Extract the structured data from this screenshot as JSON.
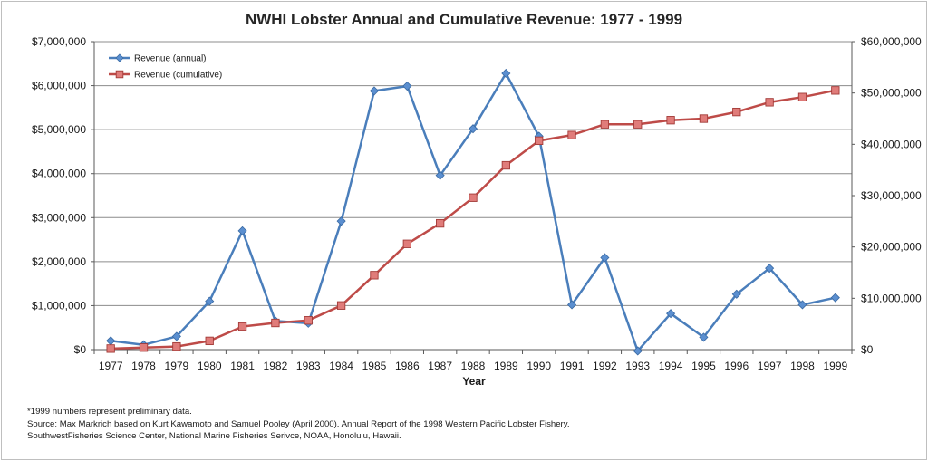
{
  "chart_data": {
    "type": "line",
    "title": "NWHI Lobster Annual and Cumulative Revenue: 1977 - 1999",
    "xlabel": "Year",
    "categories": [
      "1977",
      "1978",
      "1979",
      "1980",
      "1981",
      "1982",
      "1983",
      "1984",
      "1985",
      "1986",
      "1987",
      "1988",
      "1989",
      "1990",
      "1991",
      "1992",
      "1993",
      "1994",
      "1995",
      "1996",
      "1997",
      "1998",
      "1999"
    ],
    "y_left": {
      "ylim": [
        0,
        7000000
      ],
      "ticks": [
        "$0",
        "$1,000,000",
        "$2,000,000",
        "$3,000,000",
        "$4,000,000",
        "$5,000,000",
        "$6,000,000",
        "$7,000,000"
      ],
      "tick_values": [
        0,
        1000000,
        2000000,
        3000000,
        4000000,
        5000000,
        6000000,
        7000000
      ]
    },
    "y_right": {
      "ylim": [
        0,
        60000000
      ],
      "ticks": [
        "$0",
        "$10,000,000",
        "$20,000,000",
        "$30,000,000",
        "$40,000,000",
        "$50,000,000",
        "$60,000,000"
      ],
      "tick_values": [
        0,
        10000000,
        20000000,
        30000000,
        40000000,
        50000000,
        60000000
      ]
    },
    "grid": true,
    "legend_position": "top-left",
    "series": [
      {
        "name": "Revenue (annual)",
        "axis": "left",
        "color": "#4a7ebb",
        "marker": "diamond",
        "values": [
          200000,
          110000,
          300000,
          1100000,
          2700000,
          650000,
          600000,
          2920000,
          5880000,
          5990000,
          3960000,
          5020000,
          6280000,
          4850000,
          1020000,
          2090000,
          -30000,
          820000,
          280000,
          1260000,
          1850000,
          1020000,
          1180000
        ]
      },
      {
        "name": "Revenue (cumulative)",
        "axis": "right",
        "color": "#be4b48",
        "marker": "square",
        "values": [
          200000,
          400000,
          600000,
          1700000,
          4500000,
          5200000,
          5700000,
          8600000,
          14500000,
          20600000,
          24600000,
          29600000,
          35900000,
          40700000,
          41800000,
          43900000,
          43900000,
          44700000,
          45000000,
          46300000,
          48200000,
          49200000,
          50500000
        ]
      }
    ]
  },
  "notes": [
    "*1999 numbers represent preliminary data.",
    "Source: Max Markrich based on Kurt Kawamoto and Samuel Pooley (April 2000). Annual Report of the 1998 Western Pacific Lobster Fishery.",
    "SouthwestFisheries Science Center, National Marine Fisheries Serivce, NOAA, Honolulu, Hawaii."
  ]
}
